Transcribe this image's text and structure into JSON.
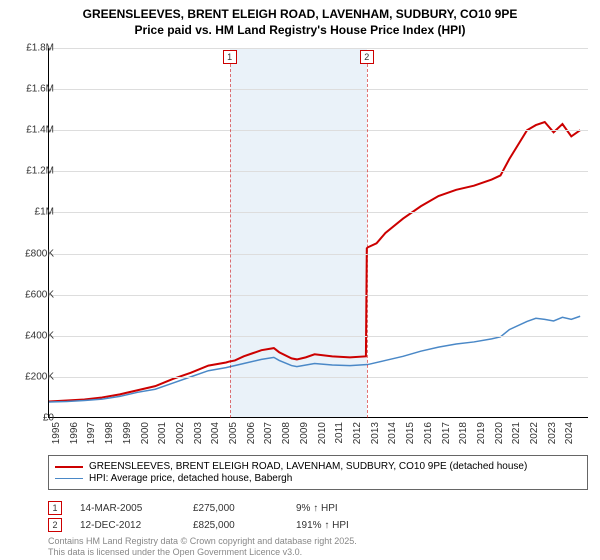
{
  "title_line1": "GREENSLEEVES, BRENT ELEIGH ROAD, LAVENHAM, SUDBURY, CO10 9PE",
  "title_line2": "Price paid vs. HM Land Registry's House Price Index (HPI)",
  "chart": {
    "type": "line",
    "x_domain": [
      1995,
      2025.5
    ],
    "y_domain": [
      0,
      1800000
    ],
    "y_ticks": [
      0,
      200000,
      400000,
      600000,
      800000,
      1000000,
      1200000,
      1400000,
      1600000,
      1800000
    ],
    "y_tick_labels": [
      "£0",
      "£200K",
      "£400K",
      "£600K",
      "£800K",
      "£1M",
      "£1.2M",
      "£1.4M",
      "£1.6M",
      "£1.8M"
    ],
    "x_ticks": [
      1995,
      1996,
      1997,
      1998,
      1999,
      2000,
      2001,
      2002,
      2003,
      2004,
      2005,
      2006,
      2007,
      2008,
      2009,
      2010,
      2011,
      2012,
      2013,
      2014,
      2015,
      2016,
      2017,
      2018,
      2019,
      2020,
      2021,
      2022,
      2023,
      2024
    ],
    "grid_color": "#dddddd",
    "background": "#ffffff",
    "shade_color": "#eaf2f9",
    "shade_range": [
      2005.2,
      2012.95
    ],
    "series": [
      {
        "id": "property",
        "color": "#cc0000",
        "width": 2,
        "points": [
          [
            1995,
            80000
          ],
          [
            1996,
            85000
          ],
          [
            1997,
            90000
          ],
          [
            1998,
            100000
          ],
          [
            1999,
            115000
          ],
          [
            2000,
            135000
          ],
          [
            2001,
            155000
          ],
          [
            2002,
            190000
          ],
          [
            2003,
            220000
          ],
          [
            2004,
            255000
          ],
          [
            2005,
            270000
          ],
          [
            2005.2,
            275000
          ],
          [
            2005.5,
            280000
          ],
          [
            2006,
            300000
          ],
          [
            2006.5,
            315000
          ],
          [
            2007,
            330000
          ],
          [
            2007.7,
            340000
          ],
          [
            2008,
            320000
          ],
          [
            2008.7,
            290000
          ],
          [
            2009,
            285000
          ],
          [
            2009.5,
            295000
          ],
          [
            2010,
            310000
          ],
          [
            2011,
            300000
          ],
          [
            2012,
            295000
          ],
          [
            2012.9,
            300000
          ],
          [
            2012.95,
            825000
          ],
          [
            2013,
            830000
          ],
          [
            2013.5,
            850000
          ],
          [
            2014,
            900000
          ],
          [
            2015,
            970000
          ],
          [
            2016,
            1030000
          ],
          [
            2017,
            1080000
          ],
          [
            2018,
            1110000
          ],
          [
            2019,
            1130000
          ],
          [
            2020,
            1160000
          ],
          [
            2020.5,
            1180000
          ],
          [
            2021,
            1260000
          ],
          [
            2021.5,
            1330000
          ],
          [
            2022,
            1400000
          ],
          [
            2022.5,
            1425000
          ],
          [
            2023,
            1440000
          ],
          [
            2023.5,
            1390000
          ],
          [
            2024,
            1430000
          ],
          [
            2024.5,
            1370000
          ],
          [
            2025,
            1400000
          ]
        ]
      },
      {
        "id": "hpi",
        "color": "#4a88c7",
        "width": 1.5,
        "points": [
          [
            1995,
            78000
          ],
          [
            1996,
            80000
          ],
          [
            1997,
            85000
          ],
          [
            1998,
            92000
          ],
          [
            1999,
            105000
          ],
          [
            2000,
            125000
          ],
          [
            2001,
            140000
          ],
          [
            2002,
            170000
          ],
          [
            2003,
            200000
          ],
          [
            2004,
            230000
          ],
          [
            2005,
            245000
          ],
          [
            2006,
            265000
          ],
          [
            2007,
            285000
          ],
          [
            2007.7,
            295000
          ],
          [
            2008,
            280000
          ],
          [
            2008.7,
            255000
          ],
          [
            2009,
            250000
          ],
          [
            2010,
            265000
          ],
          [
            2011,
            258000
          ],
          [
            2012,
            255000
          ],
          [
            2013,
            260000
          ],
          [
            2014,
            280000
          ],
          [
            2015,
            300000
          ],
          [
            2016,
            325000
          ],
          [
            2017,
            345000
          ],
          [
            2018,
            360000
          ],
          [
            2019,
            370000
          ],
          [
            2020,
            385000
          ],
          [
            2020.5,
            395000
          ],
          [
            2021,
            430000
          ],
          [
            2022,
            470000
          ],
          [
            2022.5,
            485000
          ],
          [
            2023,
            480000
          ],
          [
            2023.5,
            472000
          ],
          [
            2024,
            490000
          ],
          [
            2024.5,
            480000
          ],
          [
            2025,
            495000
          ]
        ]
      }
    ],
    "markers": [
      {
        "num": "1",
        "x": 2005.2
      },
      {
        "num": "2",
        "x": 2012.95
      }
    ]
  },
  "legend": {
    "items": [
      {
        "color": "#cc0000",
        "width": 2,
        "label": "GREENSLEEVES, BRENT ELEIGH ROAD, LAVENHAM, SUDBURY, CO10 9PE (detached house)"
      },
      {
        "color": "#4a88c7",
        "width": 1.5,
        "label": "HPI: Average price, detached house, Babergh"
      }
    ]
  },
  "footnotes": [
    {
      "num": "1",
      "date": "14-MAR-2005",
      "price": "£275,000",
      "delta": "9% ↑ HPI"
    },
    {
      "num": "2",
      "date": "12-DEC-2012",
      "price": "£825,000",
      "delta": "191% ↑ HPI"
    }
  ],
  "copyright_line1": "Contains HM Land Registry data © Crown copyright and database right 2025.",
  "copyright_line2": "This data is licensed under the Open Government Licence v3.0."
}
